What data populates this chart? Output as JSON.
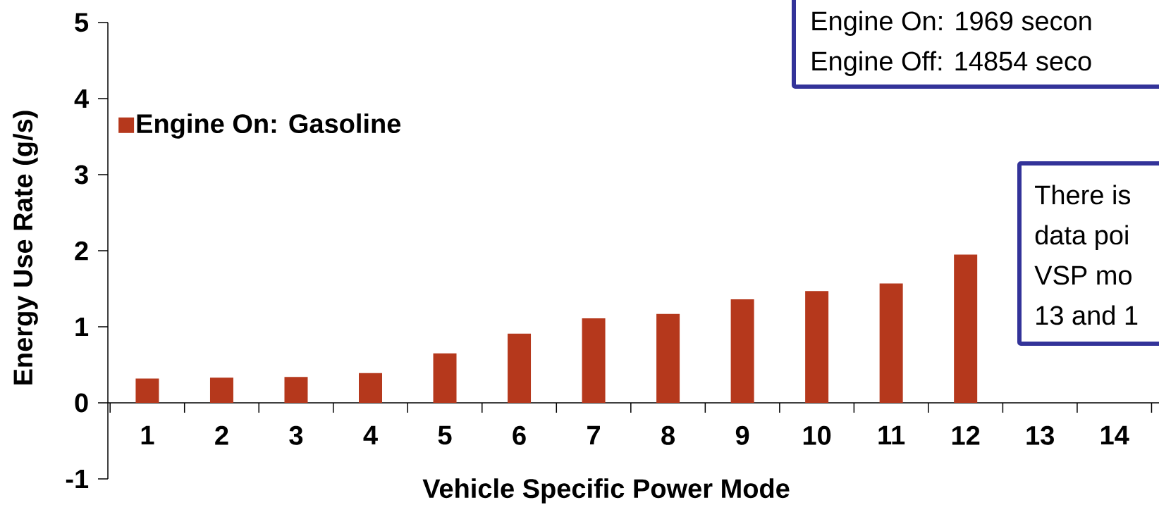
{
  "chart_data": {
    "type": "bar",
    "xlabel": "Vehicle Specific Power Mode",
    "ylabel": "Energy Use Rate (g/s)",
    "categories": [
      "1",
      "2",
      "3",
      "4",
      "5",
      "6",
      "7",
      "8",
      "9",
      "10",
      "11",
      "12",
      "13",
      "14"
    ],
    "series": [
      {
        "name": "Engine On:   Gasoline",
        "color": "#b5381c",
        "values": [
          0.32,
          0.33,
          0.34,
          0.39,
          0.65,
          0.91,
          1.11,
          1.17,
          1.36,
          1.47,
          1.57,
          1.95,
          null,
          null
        ]
      }
    ],
    "ylim": [
      -1,
      5
    ],
    "yticks": [
      -1,
      0,
      1,
      2,
      3,
      4,
      5
    ],
    "legend": "top left",
    "grid": false,
    "annotations": [
      "Engine On: 1969 secon",
      "Engine Off: 14854 seco",
      "There is",
      "data poi",
      "VSP mo",
      "13 and 1"
    ]
  }
}
